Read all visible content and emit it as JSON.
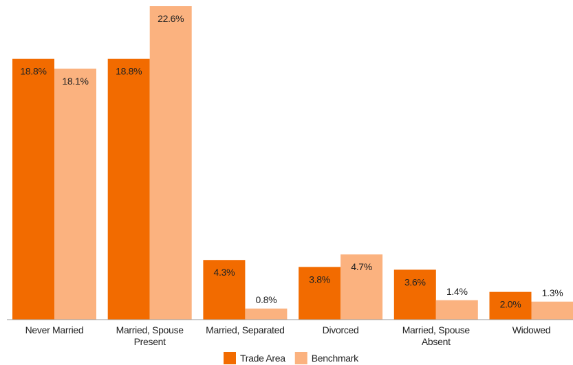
{
  "chart_data": {
    "type": "bar",
    "categories": [
      "Never Married",
      "Married, Spouse Present",
      "Married, Separated",
      "Divorced",
      "Married, Spouse Absent",
      "Widowed"
    ],
    "series": [
      {
        "name": "Trade Area",
        "color": "#f26b00",
        "values": [
          18.8,
          18.8,
          4.3,
          3.8,
          3.6,
          2.0
        ],
        "value_labels": [
          "18.8%",
          "18.8%",
          "4.3%",
          "3.8%",
          "3.6%",
          "2.0%"
        ]
      },
      {
        "name": "Benchmark",
        "color": "#fbb27f",
        "values": [
          18.1,
          22.6,
          0.8,
          4.7,
          1.4,
          1.3
        ],
        "value_labels": [
          "18.1%",
          "22.6%",
          "0.8%",
          "4.7%",
          "1.4%",
          "1.3%"
        ]
      }
    ],
    "legend": "bottom"
  }
}
